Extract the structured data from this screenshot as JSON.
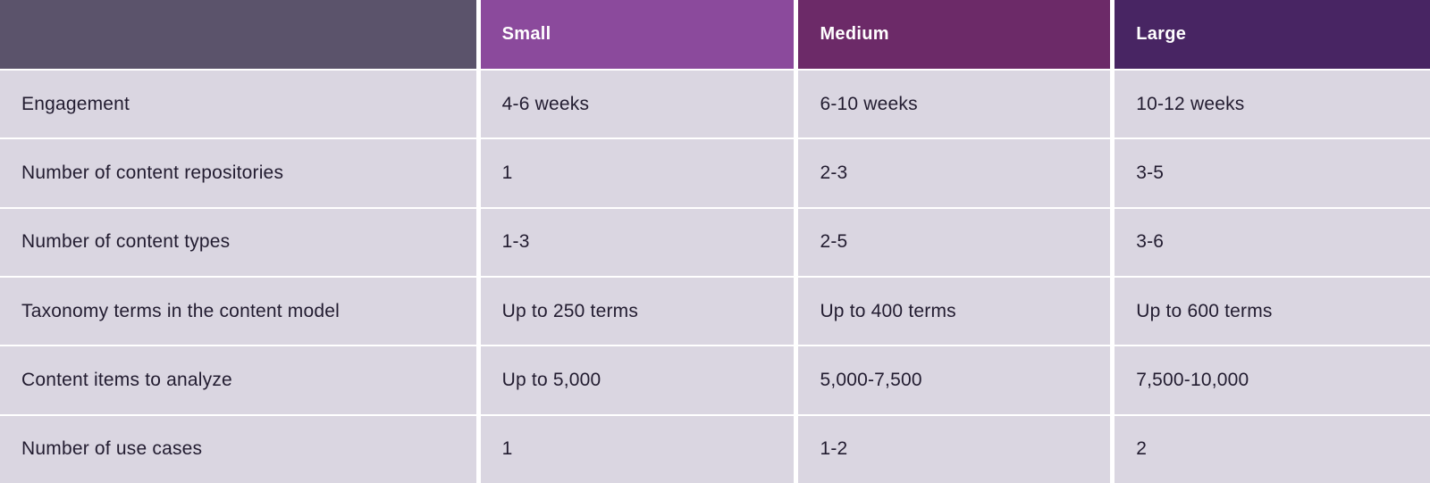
{
  "colors": {
    "corner_bg": "#5B536B",
    "small_bg": "#8B4A9C",
    "medium_bg": "#6C2A68",
    "large_bg": "#482563",
    "row_bg": "#DAD6E1",
    "separator": "#FFFFFF",
    "body_text": "#221C30",
    "header_text": "#FFFFFF"
  },
  "chart_data": {
    "type": "table",
    "title": "",
    "columns": [
      "",
      "Small",
      "Medium",
      "Large"
    ],
    "rows": [
      {
        "label": "Engagement",
        "values": [
          "4-6 weeks",
          "6-10 weeks",
          "10-12 weeks"
        ]
      },
      {
        "label": "Number of content repositories",
        "values": [
          "1",
          "2-3",
          "3-5"
        ]
      },
      {
        "label": "Number of content types",
        "values": [
          "1-3",
          "2-5",
          "3-6"
        ]
      },
      {
        "label": "Taxonomy terms in the content model",
        "values": [
          "Up to 250 terms",
          "Up to 400 terms",
          "Up to 600 terms"
        ]
      },
      {
        "label": "Content items to analyze",
        "values": [
          "Up to 5,000",
          "5,000-7,500",
          "7,500-10,000"
        ]
      },
      {
        "label": "Number of use cases",
        "values": [
          "1",
          "1-2",
          "2"
        ]
      }
    ]
  }
}
